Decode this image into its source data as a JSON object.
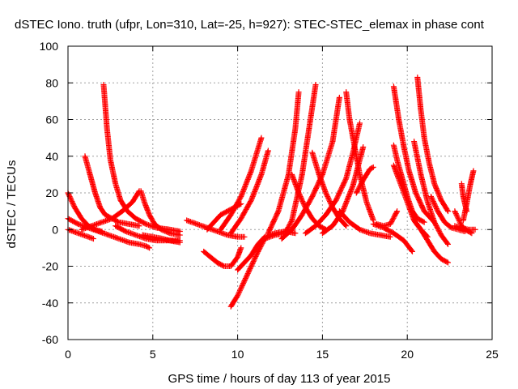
{
  "chart_data": {
    "type": "scatter",
    "title": "dSTEC Iono. truth (ufpr, Lon=310, Lat=-25, h=927): STEC-STEC_elemax in phase cont",
    "xlabel": "GPS time / hours of day 113 of year 2015",
    "ylabel": "dSTEC  / TECUs",
    "xlim": [
      0,
      25
    ],
    "ylim": [
      -60,
      100
    ],
    "xticks": [
      "0",
      "5",
      "10",
      "15",
      "20",
      "25"
    ],
    "yticks": [
      "-60",
      "-40",
      "-20",
      "0",
      "20",
      "40",
      "60",
      "80",
      "100"
    ],
    "grid": true,
    "marker": "plus",
    "color": "#ff0000",
    "series": [
      {
        "x": [
          0.0,
          0.4,
          0.8,
          1.2,
          1.6,
          2.0
        ],
        "y": [
          20,
          12,
          6,
          2,
          0,
          -1
        ]
      },
      {
        "x": [
          0.0,
          0.6,
          1.2,
          1.8,
          2.4,
          3.0,
          3.6,
          4.2,
          4.6,
          4.8
        ],
        "y": [
          6,
          3,
          1,
          -1,
          -3,
          -5,
          -7,
          -8,
          -9,
          -10
        ]
      },
      {
        "x": [
          0.0,
          0.3,
          0.6,
          0.9,
          1.2,
          1.5
        ],
        "y": [
          0,
          -1,
          -2,
          -3,
          -4,
          -5
        ]
      },
      {
        "x": [
          1.0,
          1.3,
          1.6,
          1.9,
          2.2,
          2.6,
          3.0,
          3.6,
          4.2
        ],
        "y": [
          40,
          30,
          20,
          12,
          8,
          6,
          4,
          3,
          2
        ]
      },
      {
        "x": [
          2.1,
          2.3,
          2.5,
          2.8,
          3.1,
          3.5,
          4.0,
          4.6,
          5.2,
          6.0,
          6.6
        ],
        "y": [
          79,
          55,
          38,
          25,
          16,
          10,
          6,
          3,
          1,
          0,
          -1
        ]
      },
      {
        "x": [
          0.8,
          1.4,
          2.0,
          2.6,
          3.2,
          3.8,
          4.2
        ],
        "y": [
          0,
          2,
          4,
          6,
          10,
          15,
          21
        ]
      },
      {
        "x": [
          4.3,
          4.5,
          4.8,
          5.1,
          5.5,
          6.0,
          6.6
        ],
        "y": [
          21,
          15,
          8,
          3,
          0,
          -2,
          -3
        ]
      },
      {
        "x": [
          2.8,
          3.4,
          4.0,
          4.6,
          5.2,
          5.8,
          6.4,
          6.6
        ],
        "y": [
          2,
          -1,
          -3,
          -5,
          -6,
          -6,
          -6,
          -6
        ]
      },
      {
        "x": [
          4.4,
          5.0,
          5.6,
          6.0,
          6.6
        ],
        "y": [
          -3,
          -4,
          -5,
          -6,
          -7
        ]
      },
      {
        "x": [
          7.0,
          7.6,
          8.2,
          8.8,
          9.4,
          10.0,
          10.4
        ],
        "y": [
          5,
          3,
          1,
          -1,
          -3,
          -4,
          -4
        ]
      },
      {
        "x": [
          8.2,
          8.6,
          9.0,
          9.4,
          9.8,
          10.2
        ],
        "y": [
          0,
          4,
          8,
          10,
          12,
          14
        ]
      },
      {
        "x": [
          8.0,
          8.4,
          8.8,
          9.2,
          9.6,
          10.0,
          10.2
        ],
        "y": [
          -12,
          -15,
          -18,
          -20,
          -20,
          -15,
          -10
        ]
      },
      {
        "x": [
          9.6,
          10.0,
          10.4,
          10.8,
          11.2,
          11.6
        ],
        "y": [
          -42,
          -36,
          -28,
          -20,
          -12,
          -5
        ]
      },
      {
        "x": [
          10.0,
          10.4,
          10.8,
          11.2,
          11.6,
          12.2,
          12.8,
          13.4
        ],
        "y": [
          -22,
          -18,
          -14,
          -8,
          -4,
          -2,
          -1,
          -2
        ]
      },
      {
        "x": [
          9.0,
          9.6,
          10.2,
          10.8,
          11.4
        ],
        "y": [
          0,
          8,
          18,
          32,
          50
        ]
      },
      {
        "x": [
          9.6,
          10.2,
          10.8,
          11.4,
          11.8
        ],
        "y": [
          -2,
          6,
          16,
          30,
          43
        ]
      },
      {
        "x": [
          11.8,
          12.4,
          13.0,
          13.4,
          13.6
        ],
        "y": [
          -2,
          10,
          30,
          55,
          75
        ]
      },
      {
        "x": [
          11.6,
          12.2,
          12.8,
          13.2,
          13.8,
          14.6
        ],
        "y": [
          -5,
          -3,
          -2,
          5,
          30,
          79
        ]
      },
      {
        "x": [
          13.2,
          13.6,
          14.0,
          14.4,
          14.8,
          15.2
        ],
        "y": [
          30,
          20,
          12,
          6,
          2,
          0
        ]
      },
      {
        "x": [
          14.4,
          14.8,
          15.2,
          15.6,
          16.0,
          16.4
        ],
        "y": [
          42,
          30,
          20,
          12,
          6,
          2
        ]
      },
      {
        "x": [
          12.6,
          13.2,
          13.8,
          14.4,
          15.0,
          15.6,
          16.0
        ],
        "y": [
          -5,
          0,
          8,
          18,
          30,
          48,
          72
        ]
      },
      {
        "x": [
          14.0,
          14.6,
          15.2,
          15.8,
          16.4,
          16.8,
          17.2
        ],
        "y": [
          -2,
          2,
          8,
          16,
          28,
          42,
          58
        ]
      },
      {
        "x": [
          16.4,
          16.6,
          16.9,
          17.2,
          17.6,
          18.0
        ],
        "y": [
          75,
          60,
          45,
          30,
          15,
          5
        ]
      },
      {
        "x": [
          16.0,
          16.6,
          17.2,
          17.8,
          18.4,
          19.0
        ],
        "y": [
          10,
          4,
          0,
          -2,
          -3,
          -4
        ]
      },
      {
        "x": [
          17.0,
          17.4,
          17.8,
          18.0
        ],
        "y": [
          20,
          27,
          33,
          34
        ]
      },
      {
        "x": [
          15.0,
          15.6,
          16.2,
          16.8,
          17.4
        ],
        "y": [
          -2,
          2,
          10,
          24,
          45
        ]
      },
      {
        "x": [
          18.2,
          18.6,
          19.0,
          19.4
        ],
        "y": [
          3,
          2,
          3,
          10
        ]
      },
      {
        "x": [
          19.2,
          19.4,
          19.7,
          20.0,
          20.3,
          20.6,
          21.0
        ],
        "y": [
          46,
          38,
          28,
          18,
          10,
          6,
          4
        ]
      },
      {
        "x": [
          19.2,
          19.5,
          19.8,
          20.1,
          20.5,
          21.0,
          21.6
        ],
        "y": [
          78,
          60,
          45,
          32,
          20,
          10,
          4
        ]
      },
      {
        "x": [
          19.2,
          19.6,
          20.0,
          20.4,
          20.8,
          21.2
        ],
        "y": [
          35,
          25,
          15,
          5,
          0,
          -4
        ]
      },
      {
        "x": [
          18.0,
          18.6,
          19.2,
          19.8,
          20.3
        ],
        "y": [
          3,
          1,
          -2,
          -6,
          -12
        ]
      },
      {
        "x": [
          20.6,
          20.8,
          21.0,
          21.3,
          21.6,
          22.0,
          22.4
        ],
        "y": [
          83,
          65,
          50,
          36,
          25,
          16,
          10
        ]
      },
      {
        "x": [
          20.4,
          20.8,
          21.2,
          21.6,
          22.0,
          22.4
        ],
        "y": [
          48,
          30,
          15,
          4,
          -3,
          -8
        ]
      },
      {
        "x": [
          20.4,
          20.8,
          21.2,
          21.6,
          22.0,
          22.4
        ],
        "y": [
          5,
          0,
          -6,
          -12,
          -16,
          -18
        ]
      },
      {
        "x": [
          21.4,
          21.8,
          22.2,
          22.6,
          23.0,
          23.4
        ],
        "y": [
          18,
          10,
          4,
          1,
          0,
          -1
        ]
      },
      {
        "x": [
          22.8,
          23.0,
          23.2,
          23.4,
          23.6,
          23.8
        ],
        "y": [
          10,
          6,
          2,
          0,
          -1,
          -2
        ]
      },
      {
        "x": [
          23.2,
          23.3,
          23.5
        ],
        "y": [
          25,
          18,
          10
        ]
      },
      {
        "x": [
          23.3,
          23.5,
          23.7,
          23.9
        ],
        "y": [
          5,
          14,
          24,
          32
        ]
      },
      {
        "x": [
          22.8,
          23.2,
          23.6,
          24.0
        ],
        "y": [
          2,
          1,
          0,
          0
        ]
      }
    ]
  }
}
